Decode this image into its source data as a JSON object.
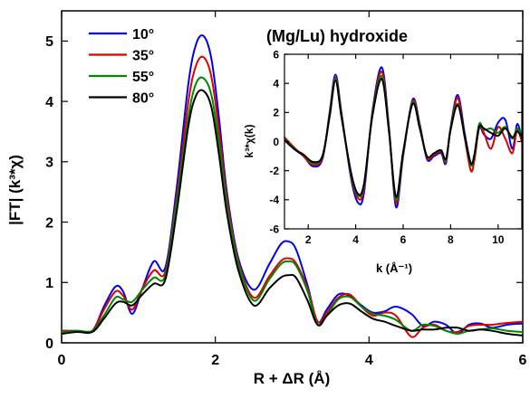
{
  "title": "(Mg/Lu) hydroxide",
  "chart_data": [
    {
      "id": "main",
      "type": "line",
      "xlabel": "R + ΔR (Å)",
      "ylabel": "|FT| (k³*χ)",
      "xlim": [
        0,
        6
      ],
      "ylim": [
        0,
        5.5
      ],
      "xticks": [
        0,
        2,
        4,
        6
      ],
      "yticks": [
        0,
        1,
        2,
        3,
        4,
        5
      ],
      "grid": false,
      "legend_position": "top-left",
      "series": [
        {
          "name": "10°",
          "color": "#0000ee",
          "x": [
            0,
            0.2,
            0.4,
            0.55,
            0.7,
            0.8,
            0.92,
            1.05,
            1.2,
            1.35,
            1.5,
            1.65,
            1.75,
            1.85,
            1.95,
            2.05,
            2.15,
            2.3,
            2.5,
            2.7,
            2.85,
            2.95,
            3.05,
            3.2,
            3.33,
            3.45,
            3.6,
            3.75,
            3.9,
            4.05,
            4.2,
            4.35,
            4.55,
            4.7,
            4.85,
            5.0,
            5.15,
            5.3,
            5.45,
            5.6,
            5.8,
            6.0
          ],
          "y": [
            0.2,
            0.2,
            0.2,
            0.6,
            0.93,
            0.85,
            0.48,
            0.9,
            1.35,
            1.25,
            2.6,
            4.3,
            4.95,
            5.08,
            4.7,
            3.7,
            2.5,
            1.4,
            0.88,
            1.3,
            1.63,
            1.68,
            1.55,
            0.95,
            0.35,
            0.55,
            0.8,
            0.78,
            0.62,
            0.5,
            0.52,
            0.6,
            0.48,
            0.28,
            0.35,
            0.3,
            0.15,
            0.3,
            0.32,
            0.25,
            0.3,
            0.32
          ]
        },
        {
          "name": "35°",
          "color": "#dd0000",
          "x": [
            0,
            0.2,
            0.4,
            0.55,
            0.7,
            0.8,
            0.92,
            1.05,
            1.2,
            1.35,
            1.5,
            1.65,
            1.75,
            1.85,
            1.95,
            2.05,
            2.15,
            2.3,
            2.5,
            2.7,
            2.85,
            2.95,
            3.05,
            3.2,
            3.33,
            3.45,
            3.6,
            3.75,
            3.9,
            4.05,
            4.2,
            4.35,
            4.55,
            4.7,
            4.85,
            5.0,
            5.15,
            5.3,
            5.45,
            5.6,
            5.8,
            6.0
          ],
          "y": [
            0.2,
            0.2,
            0.2,
            0.55,
            0.85,
            0.78,
            0.55,
            0.9,
            1.2,
            1.18,
            2.45,
            4.0,
            4.6,
            4.73,
            4.4,
            3.5,
            2.4,
            1.35,
            0.75,
            1.1,
            1.35,
            1.4,
            1.32,
            0.9,
            0.35,
            0.5,
            0.75,
            0.8,
            0.6,
            0.45,
            0.5,
            0.45,
            0.1,
            0.25,
            0.3,
            0.2,
            0.18,
            0.28,
            0.3,
            0.3,
            0.33,
            0.35
          ]
        },
        {
          "name": "55°",
          "color": "#008800",
          "x": [
            0,
            0.2,
            0.4,
            0.55,
            0.7,
            0.8,
            0.92,
            1.05,
            1.2,
            1.35,
            1.5,
            1.65,
            1.75,
            1.85,
            1.95,
            2.05,
            2.15,
            2.3,
            2.5,
            2.7,
            2.85,
            2.95,
            3.05,
            3.2,
            3.33,
            3.45,
            3.6,
            3.75,
            3.9,
            4.05,
            4.2,
            4.35,
            4.55,
            4.7,
            4.85,
            5.0,
            5.15,
            5.3,
            5.45,
            5.6,
            5.8,
            6.0
          ],
          "y": [
            0.18,
            0.2,
            0.2,
            0.45,
            0.75,
            0.72,
            0.68,
            0.88,
            1.08,
            1.12,
            2.35,
            3.75,
            4.3,
            4.38,
            4.1,
            3.3,
            2.3,
            1.3,
            0.7,
            1.05,
            1.3,
            1.35,
            1.28,
            0.85,
            0.3,
            0.45,
            0.72,
            0.76,
            0.6,
            0.48,
            0.45,
            0.38,
            0.2,
            0.3,
            0.28,
            0.2,
            0.15,
            0.2,
            0.22,
            0.24,
            0.2,
            0.18
          ]
        },
        {
          "name": "80°",
          "color": "#000000",
          "x": [
            0,
            0.2,
            0.4,
            0.55,
            0.7,
            0.8,
            0.92,
            1.05,
            1.2,
            1.35,
            1.5,
            1.65,
            1.75,
            1.85,
            1.95,
            2.05,
            2.15,
            2.3,
            2.5,
            2.7,
            2.85,
            2.95,
            3.05,
            3.2,
            3.33,
            3.45,
            3.6,
            3.75,
            3.9,
            4.05,
            4.2,
            4.35,
            4.55,
            4.7,
            4.85,
            5.0,
            5.15,
            5.3,
            5.45,
            5.6,
            5.8,
            6.0
          ],
          "y": [
            0.15,
            0.18,
            0.18,
            0.4,
            0.65,
            0.68,
            0.62,
            0.8,
            0.98,
            1.05,
            2.2,
            3.6,
            4.1,
            4.17,
            3.9,
            3.1,
            2.15,
            1.2,
            0.62,
            0.9,
            1.08,
            1.12,
            1.08,
            0.7,
            0.3,
            0.45,
            0.62,
            0.65,
            0.52,
            0.4,
            0.35,
            0.28,
            0.2,
            0.22,
            0.22,
            0.25,
            0.25,
            0.2,
            0.22,
            0.2,
            0.15,
            0.12
          ]
        }
      ]
    },
    {
      "id": "inset",
      "type": "line",
      "xlabel": "k (Å⁻¹)",
      "ylabel": "k³*χ(k)",
      "xlim": [
        1,
        11
      ],
      "ylim": [
        -6,
        6
      ],
      "xticks": [
        2,
        4,
        6,
        8,
        10
      ],
      "yticks": [
        -6,
        -4,
        -2,
        0,
        2,
        4,
        6
      ],
      "grid": false,
      "series": [
        {
          "name": "10°",
          "color": "#0000ee",
          "x": [
            1,
            1.4,
            1.8,
            2.2,
            2.6,
            2.9,
            3.15,
            3.4,
            3.8,
            4.1,
            4.35,
            4.7,
            5.1,
            5.4,
            5.7,
            6.0,
            6.4,
            6.7,
            7.0,
            7.3,
            7.6,
            7.8,
            8.0,
            8.3,
            8.6,
            8.85,
            9.0,
            9.2,
            9.4,
            9.7,
            10.0,
            10.3,
            10.6,
            10.8,
            11.0
          ],
          "y": [
            0.2,
            -0.5,
            -1.0,
            -1.7,
            -1.2,
            2.0,
            4.6,
            2.0,
            -2.5,
            -4.2,
            -3.5,
            2.0,
            5.1,
            1.0,
            -4.5,
            -1.0,
            2.9,
            1.2,
            -1.2,
            -1.0,
            -0.8,
            -1.5,
            1.0,
            3.2,
            0.5,
            -1.5,
            -1.0,
            1.0,
            0.5,
            0.2,
            1.3,
            1.5,
            -0.5,
            1.2,
            0.2
          ]
        },
        {
          "name": "35°",
          "color": "#dd0000",
          "x": [
            1,
            1.4,
            1.8,
            2.2,
            2.6,
            2.9,
            3.15,
            3.4,
            3.8,
            4.1,
            4.35,
            4.7,
            5.1,
            5.4,
            5.7,
            6.0,
            6.4,
            6.7,
            7.0,
            7.3,
            7.6,
            7.8,
            8.0,
            8.3,
            8.6,
            8.85,
            9.0,
            9.2,
            9.4,
            9.7,
            10.0,
            10.3,
            10.6,
            10.8,
            11.0
          ],
          "y": [
            0.3,
            -0.4,
            -1.0,
            -1.6,
            -1.1,
            1.9,
            4.4,
            1.9,
            -2.3,
            -3.9,
            -3.2,
            1.9,
            4.8,
            0.9,
            -4.2,
            -0.9,
            2.8,
            1.1,
            -1.1,
            -0.9,
            -0.7,
            -1.4,
            0.9,
            3.0,
            0.2,
            -2.0,
            -1.3,
            0.9,
            0.6,
            -0.5,
            1.0,
            0.2,
            -0.8,
            0.8,
            0.0
          ]
        },
        {
          "name": "55°",
          "color": "#008800",
          "x": [
            1,
            1.4,
            1.8,
            2.2,
            2.6,
            2.9,
            3.15,
            3.4,
            3.8,
            4.1,
            4.35,
            4.7,
            5.1,
            5.4,
            5.7,
            6.0,
            6.4,
            6.7,
            7.0,
            7.3,
            7.6,
            7.8,
            8.0,
            8.3,
            8.6,
            8.85,
            9.0,
            9.2,
            9.4,
            9.7,
            10.0,
            10.3,
            10.6,
            10.8,
            11.0
          ],
          "y": [
            0.2,
            -0.5,
            -0.9,
            -1.5,
            -1.0,
            1.8,
            4.3,
            1.8,
            -2.2,
            -3.7,
            -3.0,
            1.8,
            4.5,
            0.8,
            -4.0,
            -0.8,
            2.7,
            1.0,
            -1.0,
            -0.8,
            -0.6,
            -1.3,
            0.9,
            2.6,
            0.3,
            -1.6,
            -1.0,
            1.2,
            0.8,
            0.9,
            0.6,
            1.0,
            0.2,
            0.9,
            0.4
          ]
        },
        {
          "name": "80°",
          "color": "#000000",
          "x": [
            1,
            1.4,
            1.8,
            2.2,
            2.6,
            2.9,
            3.15,
            3.4,
            3.8,
            4.1,
            4.35,
            4.7,
            5.1,
            5.4,
            5.7,
            6.0,
            6.4,
            6.7,
            7.0,
            7.3,
            7.6,
            7.8,
            8.0,
            8.3,
            8.6,
            8.85,
            9.0,
            9.2,
            9.4,
            9.7,
            10.0,
            10.3,
            10.6,
            10.8,
            11.0
          ],
          "y": [
            0.1,
            -0.5,
            -0.9,
            -1.4,
            -1.0,
            1.7,
            4.2,
            1.7,
            -2.1,
            -3.6,
            -2.9,
            1.7,
            4.3,
            0.7,
            -3.8,
            -0.7,
            2.6,
            0.9,
            -1.0,
            -0.8,
            -0.6,
            -1.2,
            0.8,
            2.5,
            0.3,
            -1.5,
            -0.9,
            1.0,
            0.9,
            0.6,
            0.4,
            0.9,
            0.3,
            0.7,
            0.3
          ]
        }
      ]
    }
  ]
}
